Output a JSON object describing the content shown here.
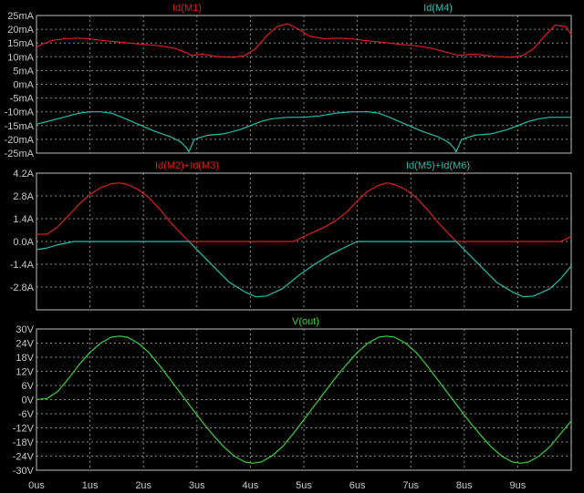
{
  "window": {
    "background": "#000000",
    "grid_color": "#8c8c8c",
    "border_color": "#bfbfbf",
    "tick_text_color": "#c8c8c8"
  },
  "x_axis": {
    "ticks": [
      0,
      1,
      2,
      3,
      4,
      5,
      6,
      7,
      8,
      9
    ],
    "tick_labels": [
      "0us",
      "1us",
      "2us",
      "3us",
      "4us",
      "5us",
      "6us",
      "7us",
      "8us",
      "9us"
    ],
    "range": [
      0,
      10
    ],
    "unit": "us"
  },
  "chart_data": [
    {
      "type": "line",
      "grid": true,
      "ylim": [
        -25,
        25
      ],
      "yticks": [
        25,
        20,
        15,
        10,
        5,
        0,
        -5,
        -10,
        -15,
        -20,
        -25
      ],
      "ytick_labels": [
        "25mA",
        "20mA",
        "15mA",
        "10mA",
        "5mA",
        "0mA",
        "-5mA",
        "-10mA",
        "-15mA",
        "-20mA",
        "-25mA"
      ],
      "series": [
        {
          "name": "Id(M1)",
          "color": "#e01e1e",
          "x": [
            0,
            0.1,
            0.3,
            0.5,
            0.8,
            1.0,
            1.3,
            1.6,
            2.0,
            2.3,
            2.6,
            2.8,
            2.9,
            3.1,
            3.4,
            3.7,
            3.9,
            4.1,
            4.3,
            4.5,
            4.7,
            4.9,
            5.1,
            5.4,
            5.6,
            5.9,
            6.2,
            6.5,
            6.8,
            7.1,
            7.4,
            7.7,
            7.9,
            8.2,
            8.6,
            8.9,
            9.1,
            9.3,
            9.5,
            9.7,
            9.9,
            10.0
          ],
          "y": [
            13.5,
            14.5,
            16,
            16.5,
            16.8,
            16.5,
            15.8,
            15.2,
            14.5,
            14,
            13,
            11.5,
            10.5,
            11,
            10,
            9.8,
            10.5,
            13,
            17.5,
            21,
            22,
            20,
            17.5,
            16.5,
            16.8,
            16.5,
            15.8,
            15.2,
            14.5,
            14,
            13,
            11.5,
            10.5,
            11,
            10,
            9.8,
            10.5,
            13,
            17.5,
            21.5,
            21,
            18
          ]
        },
        {
          "name": "Id(M4)",
          "color": "#1fbfae",
          "x": [
            0,
            0.2,
            0.4,
            0.6,
            0.8,
            1.0,
            1.2,
            1.4,
            1.6,
            1.9,
            2.2,
            2.5,
            2.7,
            2.8,
            2.85,
            2.95,
            3.2,
            3.5,
            3.8,
            4.0,
            4.2,
            4.4,
            4.7,
            5.0,
            5.3,
            5.6,
            5.9,
            6.2,
            6.4,
            6.6,
            6.9,
            7.2,
            7.5,
            7.7,
            7.8,
            7.85,
            7.95,
            8.2,
            8.5,
            8.8,
            9.0,
            9.2,
            9.4,
            9.6,
            9.8,
            10.0
          ],
          "y": [
            -14.5,
            -13.5,
            -12.5,
            -11.5,
            -10.5,
            -10,
            -10,
            -10.5,
            -12,
            -14.5,
            -17,
            -19,
            -21,
            -23,
            -24.5,
            -20,
            -18.5,
            -18,
            -16.5,
            -15,
            -13.5,
            -12.5,
            -12,
            -12,
            -11.5,
            -10.5,
            -10,
            -10,
            -10.5,
            -12,
            -14.5,
            -17,
            -19,
            -21,
            -23,
            -24.5,
            -20,
            -18.5,
            -18,
            -16.5,
            -15,
            -13.5,
            -12.5,
            -12,
            -12,
            -12
          ]
        }
      ]
    },
    {
      "type": "line",
      "grid": true,
      "ylim": [
        -4.2,
        4.2
      ],
      "yticks": [
        4.2,
        2.8,
        1.4,
        0.0,
        -1.4,
        -2.8
      ],
      "ytick_labels": [
        "4.2A",
        "2.8A",
        "1.4A",
        "0.0A",
        "-1.4A",
        "-2.8A"
      ],
      "series": [
        {
          "name": "Id(M2)+Id(M3)",
          "color": "#e01e1e",
          "x": [
            0,
            0.2,
            0.4,
            0.6,
            0.8,
            1.0,
            1.2,
            1.4,
            1.55,
            1.7,
            1.9,
            2.1,
            2.3,
            2.5,
            2.7,
            2.85,
            3.0,
            3.5,
            4.0,
            4.5,
            4.8,
            5.0,
            5.2,
            5.4,
            5.6,
            5.8,
            6.0,
            6.2,
            6.4,
            6.55,
            6.7,
            6.9,
            7.1,
            7.3,
            7.5,
            7.7,
            7.85,
            8.0,
            8.5,
            9.0,
            9.5,
            9.8,
            10.0
          ],
          "y": [
            0.45,
            0.45,
            0.9,
            1.6,
            2.3,
            2.9,
            3.3,
            3.55,
            3.6,
            3.5,
            3.2,
            2.7,
            2.0,
            1.2,
            0.5,
            0.0,
            0.0,
            0.0,
            0.0,
            0.0,
            0.0,
            0.3,
            0.6,
            0.9,
            1.3,
            1.8,
            2.5,
            3.1,
            3.45,
            3.6,
            3.5,
            3.2,
            2.7,
            2.0,
            1.2,
            0.5,
            0.0,
            0.0,
            0.0,
            0.0,
            0.0,
            0.0,
            0.3
          ]
        },
        {
          "name": "Id(M5)+Id(M6)",
          "color": "#1fbfae",
          "x": [
            0,
            0.2,
            0.4,
            0.7,
            1.0,
            1.5,
            2.0,
            2.5,
            2.85,
            3.0,
            3.3,
            3.6,
            3.9,
            4.1,
            4.3,
            4.6,
            4.9,
            5.2,
            5.5,
            5.8,
            6.0,
            6.5,
            7.0,
            7.5,
            7.85,
            8.0,
            8.3,
            8.6,
            8.9,
            9.1,
            9.3,
            9.6,
            9.8,
            10.0
          ],
          "y": [
            -0.5,
            -0.4,
            -0.2,
            0.0,
            0.0,
            0.0,
            0.0,
            0.0,
            0.0,
            -0.5,
            -1.5,
            -2.5,
            -3.1,
            -3.4,
            -3.35,
            -2.9,
            -2.1,
            -1.4,
            -0.8,
            -0.3,
            0.0,
            0.0,
            0.0,
            0.0,
            0.0,
            -0.5,
            -1.5,
            -2.5,
            -3.1,
            -3.4,
            -3.35,
            -2.9,
            -2.3,
            -1.5
          ]
        }
      ]
    },
    {
      "type": "line",
      "grid": true,
      "ylim": [
        -30,
        30
      ],
      "yticks": [
        30,
        24,
        18,
        12,
        6,
        0,
        -6,
        -12,
        -18,
        -24,
        -30
      ],
      "ytick_labels": [
        "30V",
        "24V",
        "18V",
        "12V",
        "6V",
        "0V",
        "-6V",
        "-12V",
        "-18V",
        "-24V",
        "-30V"
      ],
      "series": [
        {
          "name": "V(out)",
          "color": "#3ad13a",
          "x": [
            0,
            0.2,
            0.4,
            0.6,
            0.8,
            1.0,
            1.2,
            1.4,
            1.55,
            1.7,
            1.9,
            2.1,
            2.3,
            2.5,
            2.7,
            2.9,
            3.1,
            3.3,
            3.5,
            3.7,
            3.9,
            4.05,
            4.2,
            4.4,
            4.6,
            4.8,
            5.0,
            5.2,
            5.4,
            5.6,
            5.8,
            6.0,
            6.2,
            6.4,
            6.55,
            6.7,
            6.9,
            7.1,
            7.3,
            7.5,
            7.7,
            7.9,
            8.1,
            8.3,
            8.5,
            8.7,
            8.9,
            9.05,
            9.2,
            9.4,
            9.6,
            9.8,
            10.0
          ],
          "y": [
            0,
            0.5,
            3.5,
            9,
            15,
            20,
            24,
            26.5,
            27,
            26.5,
            24,
            20,
            14.5,
            8.5,
            2.5,
            -3.5,
            -9.5,
            -15,
            -20,
            -24,
            -26.5,
            -27,
            -26.5,
            -24,
            -20,
            -14.5,
            -8.5,
            -2.5,
            3.5,
            9.5,
            15,
            20,
            24,
            26.5,
            27,
            26.5,
            24,
            20,
            14.5,
            8.5,
            2.5,
            -3.5,
            -9.5,
            -15,
            -20,
            -24,
            -26.5,
            -27,
            -26.5,
            -24,
            -20,
            -14.5,
            -9
          ]
        }
      ]
    }
  ]
}
